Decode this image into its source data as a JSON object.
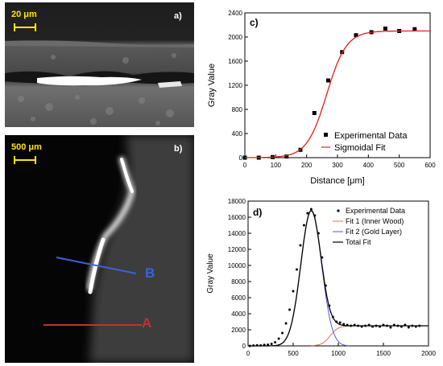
{
  "panel_a": {
    "label": "a)",
    "scale_bar": "20 μm"
  },
  "panel_b": {
    "label": "b)",
    "scale_bar": "500 μm",
    "line_b": "B",
    "line_a": "A"
  },
  "chart_data": [
    {
      "type": "scatter",
      "panel_label": "c)",
      "xlabel": "Distance [μm]",
      "ylabel": "Gray Value",
      "xlim": [
        0,
        600
      ],
      "ylim": [
        0,
        2400
      ],
      "xticks": [
        0,
        100,
        200,
        300,
        400,
        500,
        600
      ],
      "yticks": [
        0,
        400,
        800,
        1200,
        1600,
        2000,
        2400
      ],
      "legend_position": "lower-right",
      "series": [
        {
          "name": "Experimental Data",
          "kind": "points",
          "color": "#000000",
          "x": [
            0,
            45,
            90,
            135,
            180,
            225,
            270,
            315,
            360,
            410,
            455,
            500,
            550
          ],
          "y": [
            0,
            0,
            10,
            20,
            130,
            740,
            1280,
            1750,
            2030,
            2080,
            2140,
            2100,
            2130
          ]
        },
        {
          "name": "Sigmoidal Fit",
          "kind": "line",
          "color": "#e0201b",
          "model": {
            "A1": 0,
            "A2": 2100,
            "x0": 265,
            "dx": 32
          }
        }
      ],
      "grid": false
    },
    {
      "type": "line",
      "panel_label": "d)",
      "xlabel": "",
      "ylabel": "Gray Value",
      "xlim": [
        0,
        2000
      ],
      "ylim": [
        0,
        18000
      ],
      "xticks": [
        0,
        500,
        1000,
        1500,
        2000
      ],
      "yticks": [
        0,
        2000,
        4000,
        6000,
        8000,
        10000,
        12000,
        14000,
        16000,
        18000
      ],
      "legend_position": "top-right",
      "series": [
        {
          "name": "Experimental Data",
          "kind": "points",
          "color": "#000000",
          "x": [
            20,
            60,
            100,
            140,
            180,
            220,
            260,
            300,
            340,
            380,
            420,
            460,
            500,
            540,
            580,
            620,
            660,
            700,
            740,
            780,
            820,
            860,
            900,
            940,
            980,
            1020,
            1060,
            1100,
            1140,
            1180,
            1220,
            1260,
            1300,
            1340,
            1380,
            1420,
            1460,
            1500,
            1540,
            1580,
            1620,
            1660,
            1700,
            1740,
            1780,
            1820,
            1860,
            1900
          ],
          "y": [
            0,
            50,
            80,
            60,
            120,
            150,
            250,
            450,
            900,
            1600,
            2800,
            4500,
            6800,
            9500,
            12500,
            15000,
            16500,
            17000,
            16200,
            14000,
            11000,
            7500,
            5000,
            3600,
            3000,
            2900,
            2700,
            2600,
            2500,
            2600,
            2500,
            2400,
            2500,
            2600,
            2400,
            2500,
            2400,
            2600,
            2500,
            2300,
            2600,
            2500,
            2400,
            2600,
            2300,
            2500,
            2400,
            2500
          ]
        },
        {
          "name": "Fit 1 (Inner Wood)",
          "kind": "line",
          "color": "#e07050",
          "model": {
            "A1": 0,
            "A2": 2500,
            "x0": 910,
            "dx": 45
          }
        },
        {
          "name": "Fit 2 (Gold Layer)",
          "kind": "line",
          "color": "#5555dd",
          "model": {
            "amp": 16800,
            "mu": 700,
            "sigma": 115
          }
        },
        {
          "name": "Total Fit",
          "kind": "line",
          "color": "#000000"
        }
      ],
      "grid": false
    }
  ]
}
